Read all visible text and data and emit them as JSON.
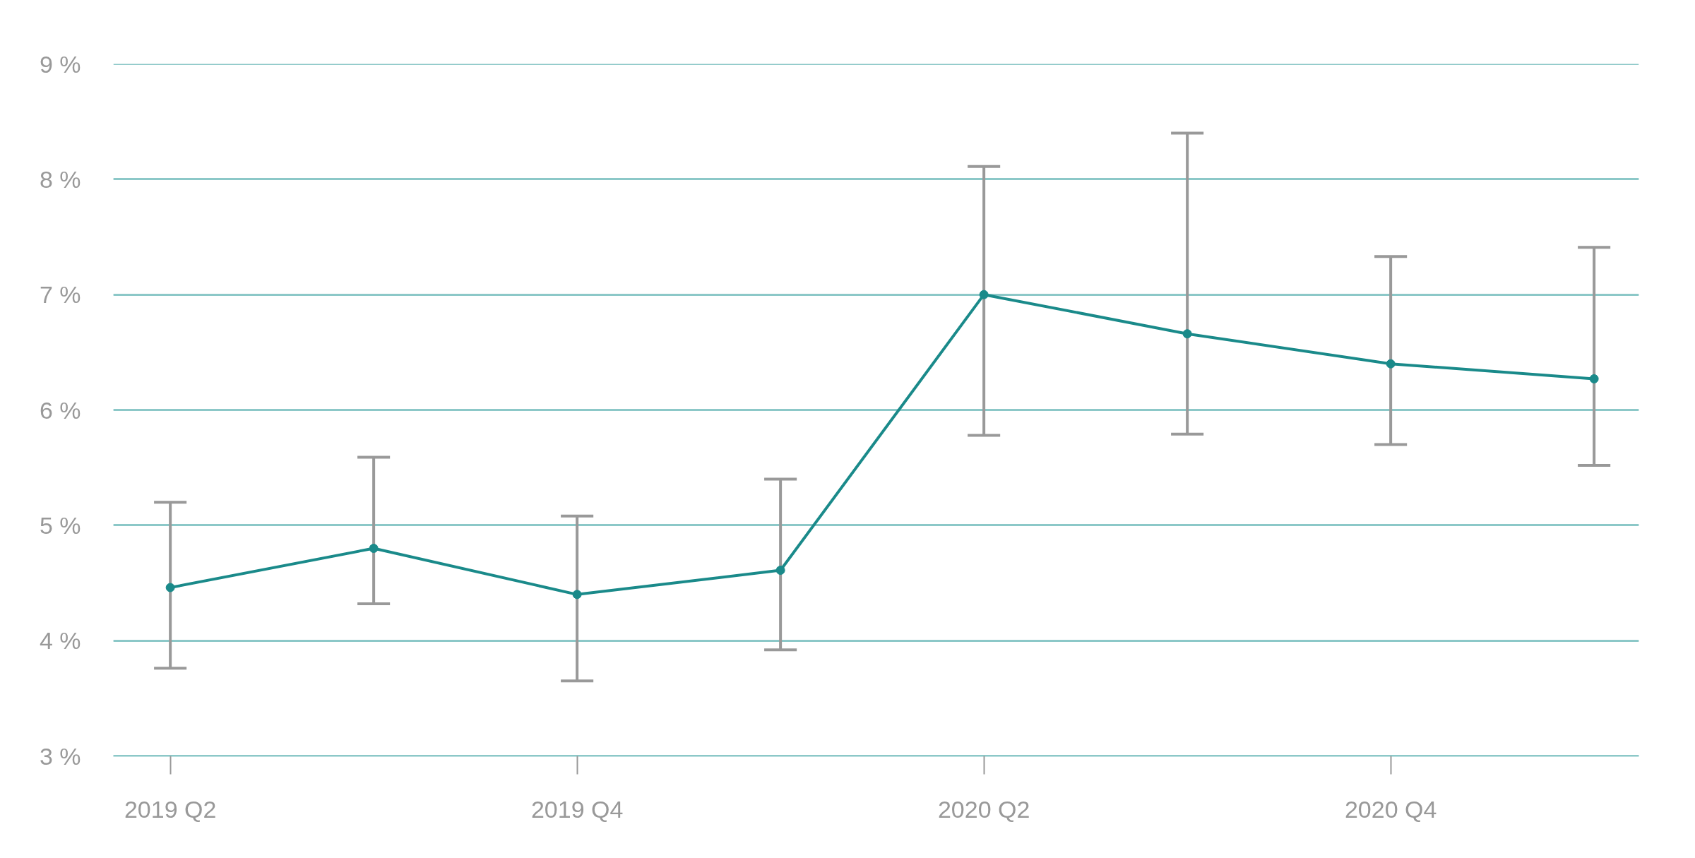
{
  "chart_data": {
    "type": "line",
    "categories": [
      "2019 Q2",
      null,
      "2019 Q4",
      null,
      "2020 Q2",
      null,
      "2020 Q4",
      null
    ],
    "series": [
      {
        "color": "#1a8a8a",
        "values": [
          4.46,
          4.8,
          4.4,
          4.61,
          7.0,
          6.66,
          6.4,
          6.27
        ],
        "errors": [
          [
            3.76,
            5.2
          ],
          [
            4.32,
            5.59
          ],
          [
            3.65,
            5.08
          ],
          [
            3.92,
            5.4
          ],
          [
            5.78,
            8.11
          ],
          [
            5.79,
            8.4
          ],
          [
            5.7,
            7.33
          ],
          [
            5.52,
            7.41
          ]
        ]
      }
    ],
    "ylim": [
      3,
      9
    ],
    "yticks": [
      {
        "value": 3,
        "label": "3 %"
      },
      {
        "value": 4,
        "label": "4 %"
      },
      {
        "value": 5,
        "label": "5 %"
      },
      {
        "value": 6,
        "label": "6 %"
      },
      {
        "value": 7,
        "label": "7 %"
      },
      {
        "value": 8,
        "label": "8 %"
      },
      {
        "value": 9,
        "label": "9 %"
      }
    ],
    "grid": "y",
    "marker": "circle",
    "line_style": "solid"
  }
}
